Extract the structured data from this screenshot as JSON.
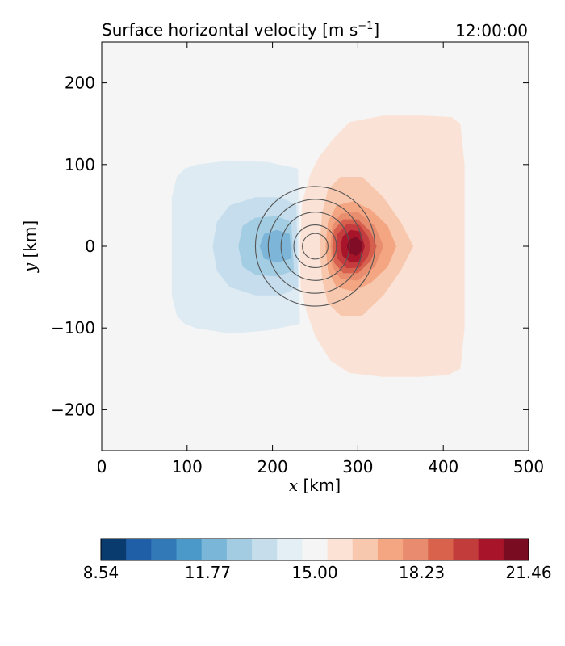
{
  "chart_data": {
    "type": "heatmap",
    "title": "Surface horizontal velocity [m s",
    "title_superscript": "−1",
    "title_close": "]",
    "timestamp": "12:00:00",
    "xlabel_var": "x",
    "xlabel_unit": " [km]",
    "ylabel_var": "y",
    "ylabel_unit": " [km]",
    "xlim": [
      0,
      500
    ],
    "ylim": [
      -250,
      250
    ],
    "xticks": [
      0,
      100,
      200,
      300,
      400,
      500
    ],
    "xtick_labels": [
      "0",
      "100",
      "200",
      "300",
      "400",
      "500"
    ],
    "yticks": [
      200,
      100,
      0,
      -100,
      -200
    ],
    "ytick_labels": [
      "200",
      "100",
      "0",
      "−100",
      "−200"
    ],
    "background_color": "#f5f5f5",
    "field_regions": [
      {
        "level": 14.19,
        "color": "#deebf3",
        "polygon": [
          [
            82,
            -15
          ],
          [
            82,
            60
          ],
          [
            88,
            85
          ],
          [
            97,
            95
          ],
          [
            112,
            100
          ],
          [
            150,
            105
          ],
          [
            195,
            103
          ],
          [
            230,
            95
          ],
          [
            232,
            -95
          ],
          [
            195,
            -103
          ],
          [
            150,
            -107
          ],
          [
            110,
            -100
          ],
          [
            97,
            -95
          ],
          [
            88,
            -85
          ],
          [
            82,
            -60
          ]
        ]
      },
      {
        "level": 13.38,
        "color": "#c6dded",
        "polygon": [
          [
            130,
            0
          ],
          [
            135,
            30
          ],
          [
            150,
            50
          ],
          [
            180,
            60
          ],
          [
            210,
            60
          ],
          [
            228,
            50
          ],
          [
            230,
            -50
          ],
          [
            210,
            -60
          ],
          [
            180,
            -60
          ],
          [
            150,
            -50
          ],
          [
            135,
            -30
          ]
        ]
      },
      {
        "level": 12.58,
        "color": "#a3cde3",
        "polygon": [
          [
            160,
            0
          ],
          [
            165,
            25
          ],
          [
            180,
            35
          ],
          [
            205,
            37
          ],
          [
            222,
            30
          ],
          [
            225,
            -30
          ],
          [
            205,
            -37
          ],
          [
            180,
            -35
          ],
          [
            165,
            -25
          ]
        ]
      },
      {
        "level": 11.77,
        "color": "#7cb5d8",
        "polygon": [
          [
            185,
            0
          ],
          [
            190,
            15
          ],
          [
            205,
            20
          ],
          [
            220,
            15
          ],
          [
            222,
            -15
          ],
          [
            205,
            -20
          ],
          [
            190,
            -15
          ]
        ]
      },
      {
        "level": 15.81,
        "color": "#fae3d6",
        "polygon": [
          [
            232,
            0
          ],
          [
            235,
            55
          ],
          [
            245,
            90
          ],
          [
            255,
            110
          ],
          [
            270,
            130
          ],
          [
            290,
            152
          ],
          [
            330,
            160
          ],
          [
            375,
            160
          ],
          [
            410,
            158
          ],
          [
            420,
            150
          ],
          [
            425,
            100
          ],
          [
            425,
            -100
          ],
          [
            420,
            -150
          ],
          [
            405,
            -158
          ],
          [
            370,
            -160
          ],
          [
            330,
            -160
          ],
          [
            290,
            -155
          ],
          [
            268,
            -140
          ],
          [
            250,
            -110
          ],
          [
            240,
            -80
          ],
          [
            233,
            -50
          ]
        ]
      },
      {
        "level": 16.62,
        "color": "#f8c8ae",
        "polygon": [
          [
            255,
            0
          ],
          [
            258,
            40
          ],
          [
            265,
            70
          ],
          [
            280,
            85
          ],
          [
            305,
            85
          ],
          [
            330,
            60
          ],
          [
            350,
            30
          ],
          [
            365,
            0
          ],
          [
            350,
            -30
          ],
          [
            330,
            -60
          ],
          [
            305,
            -85
          ],
          [
            280,
            -85
          ],
          [
            265,
            -70
          ],
          [
            258,
            -40
          ]
        ]
      },
      {
        "level": 17.42,
        "color": "#f4a582",
        "polygon": [
          [
            262,
            0
          ],
          [
            265,
            30
          ],
          [
            275,
            50
          ],
          [
            295,
            55
          ],
          [
            315,
            45
          ],
          [
            335,
            25
          ],
          [
            345,
            0
          ],
          [
            335,
            -25
          ],
          [
            315,
            -45
          ],
          [
            295,
            -55
          ],
          [
            275,
            -50
          ],
          [
            265,
            -30
          ]
        ]
      },
      {
        "level": 18.23,
        "color": "#e98d6f",
        "polygon": [
          [
            268,
            0
          ],
          [
            270,
            25
          ],
          [
            280,
            40
          ],
          [
            300,
            42
          ],
          [
            320,
            25
          ],
          [
            330,
            0
          ],
          [
            320,
            -25
          ],
          [
            300,
            -42
          ],
          [
            280,
            -40
          ],
          [
            270,
            -25
          ]
        ]
      },
      {
        "level": 19.04,
        "color": "#d6604d",
        "polygon": [
          [
            270,
            0
          ],
          [
            272,
            20
          ],
          [
            283,
            33
          ],
          [
            300,
            33
          ],
          [
            315,
            18
          ],
          [
            322,
            0
          ],
          [
            315,
            -18
          ],
          [
            300,
            -33
          ],
          [
            283,
            -33
          ],
          [
            272,
            -20
          ]
        ]
      },
      {
        "level": 19.85,
        "color": "#c43c3d",
        "polygon": [
          [
            274,
            0
          ],
          [
            276,
            15
          ],
          [
            287,
            27
          ],
          [
            302,
            26
          ],
          [
            312,
            12
          ],
          [
            315,
            0
          ],
          [
            312,
            -12
          ],
          [
            302,
            -26
          ],
          [
            287,
            -27
          ],
          [
            276,
            -15
          ]
        ]
      },
      {
        "level": 20.65,
        "color": "#a8152b",
        "polygon": [
          [
            280,
            0
          ],
          [
            282,
            12
          ],
          [
            292,
            20
          ],
          [
            303,
            18
          ],
          [
            308,
            0
          ],
          [
            303,
            -18
          ],
          [
            292,
            -20
          ],
          [
            282,
            -12
          ]
        ]
      },
      {
        "level": 21.46,
        "color": "#800d25",
        "polygon": [
          [
            287,
            0
          ],
          [
            290,
            8
          ],
          [
            298,
            12
          ],
          [
            304,
            6
          ],
          [
            305,
            0
          ],
          [
            304,
            -6
          ],
          [
            298,
            -12
          ],
          [
            290,
            -8
          ]
        ]
      },
      {
        "level": 15.81,
        "color": "#fae3d6",
        "polygon": [
          [
            403,
            0
          ],
          [
            410,
            28
          ],
          [
            416,
            0
          ],
          [
            410,
            -28
          ]
        ]
      }
    ],
    "contour_center": [
      250,
      0
    ],
    "contour_radii_km": [
      15,
      25,
      40,
      55,
      70
    ],
    "contour_color": "#555555",
    "colorbar": {
      "colors": [
        "#0a3b6f",
        "#1f5fa8",
        "#3179b7",
        "#4b99c8",
        "#79b6d8",
        "#a3cce3",
        "#c6deec",
        "#e3eef5",
        "#f5f5f5",
        "#fbe2d4",
        "#f8c8ae",
        "#f4a582",
        "#e98b6e",
        "#d8624c",
        "#c33c3c",
        "#a8152b",
        "#7a0c22"
      ],
      "tick_labels": [
        "8.54",
        "11.77",
        "15.00",
        "18.23",
        "21.46"
      ]
    }
  }
}
